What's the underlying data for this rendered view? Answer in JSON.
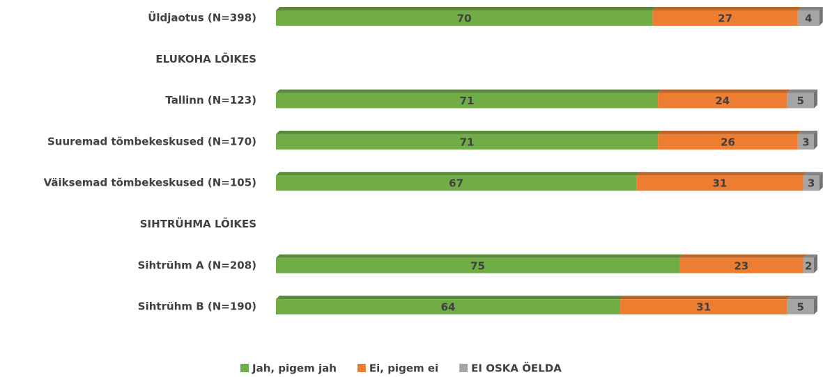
{
  "chart_data": {
    "type": "stacked-bar-horizontal",
    "categories": [
      "Üldjaotus (N=398)",
      "ELUKOHA LÕIKES",
      "Tallinn (N=123)",
      "Suuremad tõmbekeskused (N=170)",
      "Väiksemad tõmbekeskused (N=105)",
      "SIHTRÜHMA LÕIKES",
      "Sihtrühm A (N=208)",
      "Sihtrühm B (N=190)"
    ],
    "series": [
      {
        "name": "Jah, pigem jah",
        "color": "#70ad47",
        "values": [
          70,
          null,
          71,
          71,
          67,
          null,
          75,
          64
        ]
      },
      {
        "name": "Ei, pigem ei",
        "color": "#ed7d31",
        "values": [
          27,
          null,
          24,
          26,
          31,
          null,
          23,
          31
        ]
      },
      {
        "name": "EI OSKA ÖELDA",
        "color": "#a5a5a5",
        "values": [
          4,
          null,
          5,
          3,
          3,
          null,
          2,
          5
        ]
      }
    ],
    "legend": "bottom"
  }
}
